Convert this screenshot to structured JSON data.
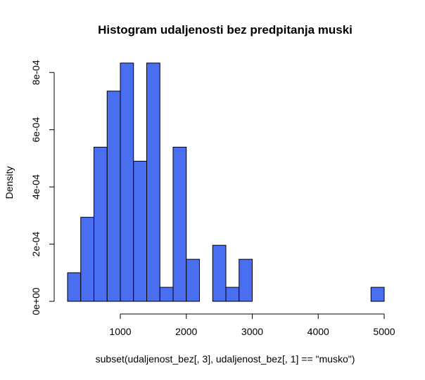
{
  "chart_data": {
    "type": "bar",
    "title": "Histogram udaljenosti bez predpitanja muski",
    "xlabel": "subset(udaljenost_bez[, 3], udaljenost_bez[, 1] == \"musko\")",
    "ylabel": "Density",
    "bin_width": 200,
    "bins": [
      {
        "start": 200,
        "end": 400,
        "density": 0.0001
      },
      {
        "start": 400,
        "end": 600,
        "density": 0.000294
      },
      {
        "start": 600,
        "end": 800,
        "density": 0.000539
      },
      {
        "start": 800,
        "end": 1000,
        "density": 0.000735
      },
      {
        "start": 1000,
        "end": 1200,
        "density": 0.000833
      },
      {
        "start": 1200,
        "end": 1400,
        "density": 0.00049
      },
      {
        "start": 1400,
        "end": 1600,
        "density": 0.000833
      },
      {
        "start": 1600,
        "end": 1800,
        "density": 4.9e-05
      },
      {
        "start": 1800,
        "end": 2000,
        "density": 0.000539
      },
      {
        "start": 2000,
        "end": 2200,
        "density": 0.000147
      },
      {
        "start": 2200,
        "end": 2400,
        "density": 0.0
      },
      {
        "start": 2400,
        "end": 2600,
        "density": 0.000196
      },
      {
        "start": 2600,
        "end": 2800,
        "density": 4.9e-05
      },
      {
        "start": 2800,
        "end": 3000,
        "density": 0.000147
      },
      {
        "start": 3000,
        "end": 3200,
        "density": 0.0
      },
      {
        "start": 3200,
        "end": 3400,
        "density": 0.0
      },
      {
        "start": 3400,
        "end": 3600,
        "density": 0.0
      },
      {
        "start": 3600,
        "end": 3800,
        "density": 0.0
      },
      {
        "start": 3800,
        "end": 4000,
        "density": 0.0
      },
      {
        "start": 4000,
        "end": 4200,
        "density": 0.0
      },
      {
        "start": 4200,
        "end": 4400,
        "density": 0.0
      },
      {
        "start": 4400,
        "end": 4600,
        "density": 0.0
      },
      {
        "start": 4600,
        "end": 4800,
        "density": 0.0
      },
      {
        "start": 4800,
        "end": 5000,
        "density": 4.9e-05
      }
    ],
    "xlim": [
      200,
      5000
    ],
    "ylim": [
      0,
      0.00083
    ],
    "x_ticks": [
      {
        "value": 1000,
        "label": "1000"
      },
      {
        "value": 2000,
        "label": "2000"
      },
      {
        "value": 3000,
        "label": "3000"
      },
      {
        "value": 4000,
        "label": "4000"
      },
      {
        "value": 5000,
        "label": "5000"
      }
    ],
    "y_ticks": [
      {
        "value": 0,
        "label": "0e+00"
      },
      {
        "value": 0.0002,
        "label": "2e-04"
      },
      {
        "value": 0.0004,
        "label": "4e-04"
      },
      {
        "value": 0.0006,
        "label": "6e-04"
      },
      {
        "value": 0.0008,
        "label": "8e-04"
      }
    ],
    "grid": false,
    "bar_color": "#4a6ef0",
    "border_color": "#000000"
  }
}
